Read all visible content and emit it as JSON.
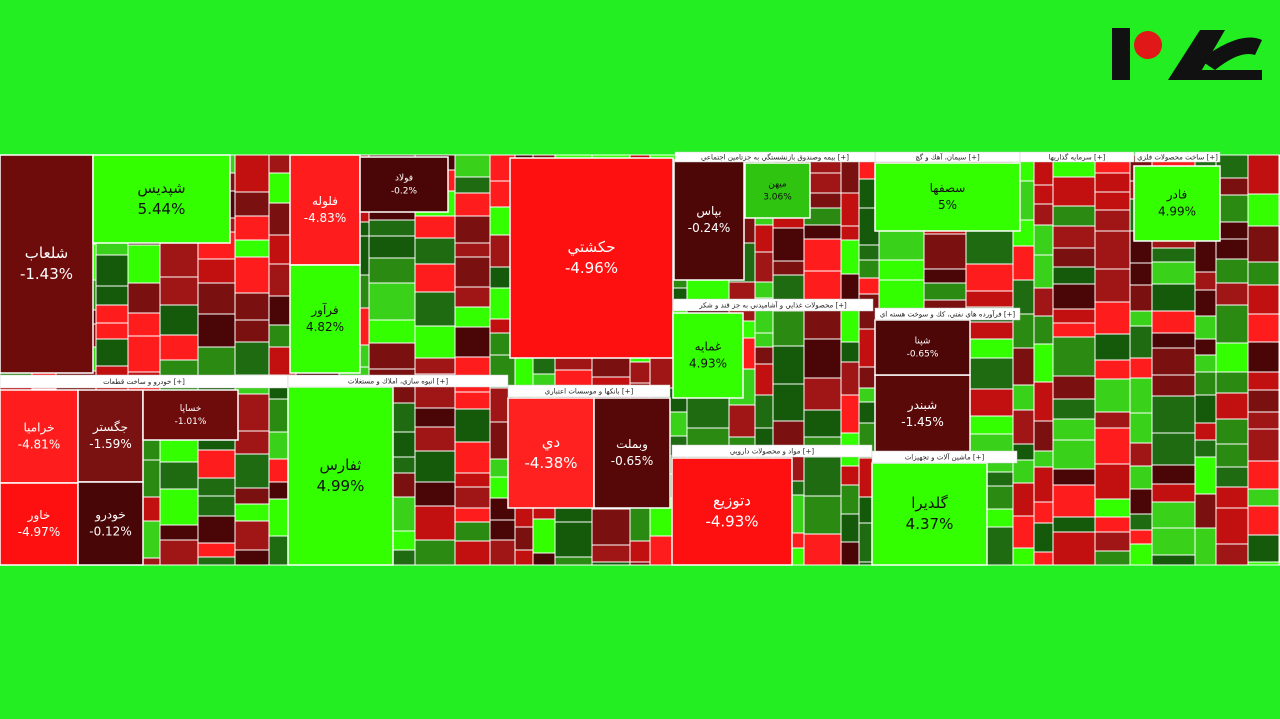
{
  "tiles": [
    {
      "label": "شلعاب",
      "change": "-1.43%",
      "color": "#6e0b0b"
    },
    {
      "label": "شپديس",
      "change": "5.44%",
      "color": "#33ff00"
    },
    {
      "label": "خراميا",
      "change": "-4.81%",
      "color": "#ff1c1c"
    },
    {
      "label": "خاور",
      "change": "-4.97%",
      "color": "#ff1010"
    },
    {
      "label": "جگستر",
      "change": "-1.59%",
      "color": "#7a1212"
    },
    {
      "label": "خودرو",
      "change": "-0.12%",
      "color": "#480606"
    },
    {
      "label": "فلوله",
      "change": "-4.83%",
      "color": "#ff1c1c"
    },
    {
      "label": "فرآور",
      "change": "4.82%",
      "color": "#33ff00"
    },
    {
      "label": "ثفارس",
      "change": "4.99%",
      "color": "#33ff00"
    },
    {
      "label": "حکشتي",
      "change": "-4.96%",
      "color": "#ff1010"
    },
    {
      "label": "دي",
      "change": "-4.38%",
      "color": "#ff2020"
    },
    {
      "label": "وبملت",
      "change": "-0.65%",
      "color": "#560808"
    },
    {
      "label": "بپاس",
      "change": "-0.24%",
      "color": "#4e0707"
    },
    {
      "label": "غمايه",
      "change": "4.93%",
      "color": "#33ff00"
    },
    {
      "label": "دتوزيع",
      "change": "-4.93%",
      "color": "#ff1010"
    },
    {
      "label": "سصفها",
      "change": "5%",
      "color": "#33ff00"
    },
    {
      "label": "شبندر",
      "change": "-1.45%",
      "color": "#5a0909"
    },
    {
      "label": "شپنا",
      "change": "-0.65%",
      "color": "#4e0707"
    },
    {
      "label": "گلديرا",
      "change": "4.37%",
      "color": "#33ff00"
    },
    {
      "label": "فولاد",
      "change": "-0.2%",
      "color": "#4a0606"
    },
    {
      "label": "خساپا",
      "change": "-1.01%",
      "color": "#6e0b0b"
    },
    {
      "label": "ميهن",
      "change": "3.06%",
      "color": "#2fc410"
    },
    {
      "label": "فادر",
      "change": "4.99%",
      "color": "#33ff00"
    }
  ],
  "sectors": [
    "خودرو و ساخت قطعات [+]",
    "انبوه سازي، املاك و مستغلات [+]",
    "بانكها و موسسات اعتباري [+]",
    "محصولات غذايي و آشاميدني به جز قند و شكر [+]",
    "مواد و محصولات دارويي [+]",
    "فرآورده هاي نفتي، كك و سوخت هسته اي [+]",
    "ماشين آلات و تجهيزات [+]",
    "سيمان، آهك و گچ [+]",
    "بيمه وصندوق بازنشستگي به جزتامين اجتماعي [+]",
    "سرمايه گذاريها [+]",
    "ساخت محصولات فلزي [+]"
  ]
}
